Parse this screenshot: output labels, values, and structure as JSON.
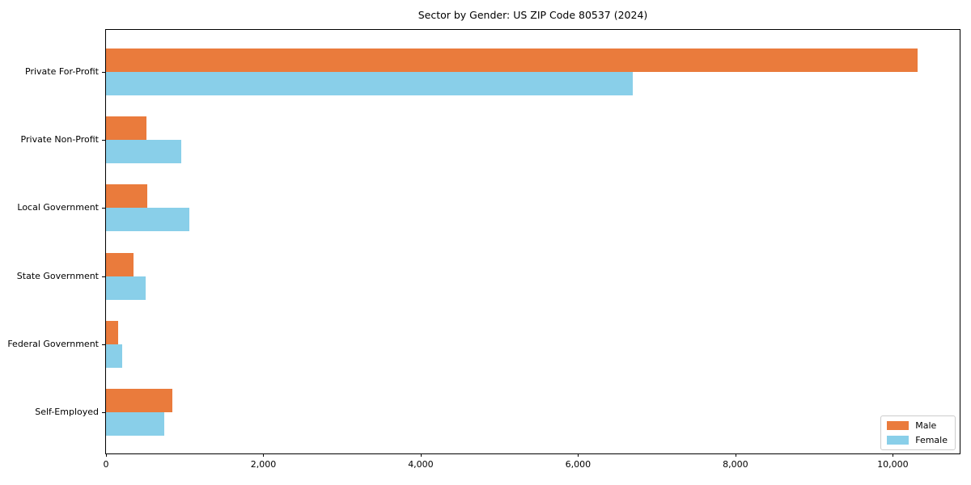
{
  "title": "Sector by Gender: US ZIP Code 80537 (2024)",
  "colors": {
    "male": "#ea7b3c",
    "female": "#89cfe9",
    "axis": "#000000",
    "legend_border": "#cccccc",
    "background": "#ffffff"
  },
  "legend": {
    "position": "lower right",
    "entries": [
      "Male",
      "Female"
    ]
  },
  "chart_data": {
    "type": "bar",
    "orientation": "horizontal",
    "title": "Sector by Gender: US ZIP Code 80537 (2024)",
    "categories": [
      "Private For-Profit",
      "Private Non-Profit",
      "Local Government",
      "State Government",
      "Federal Government",
      "Self-Employed"
    ],
    "series": [
      {
        "name": "Male",
        "color": "#ea7b3c",
        "values": [
          10320,
          515,
          520,
          350,
          150,
          845
        ]
      },
      {
        "name": "Female",
        "color": "#89cfe9",
        "values": [
          6700,
          960,
          1060,
          500,
          210,
          740
        ]
      }
    ],
    "xlabel": "",
    "ylabel": "",
    "xlim": [
      0,
      10850
    ],
    "x_ticks": [
      0,
      2000,
      4000,
      6000,
      8000,
      10000
    ],
    "x_tick_labels": [
      "0",
      "2,000",
      "4,000",
      "6,000",
      "8,000",
      "10,000"
    ],
    "grid": false,
    "legend_position": "lower right"
  }
}
